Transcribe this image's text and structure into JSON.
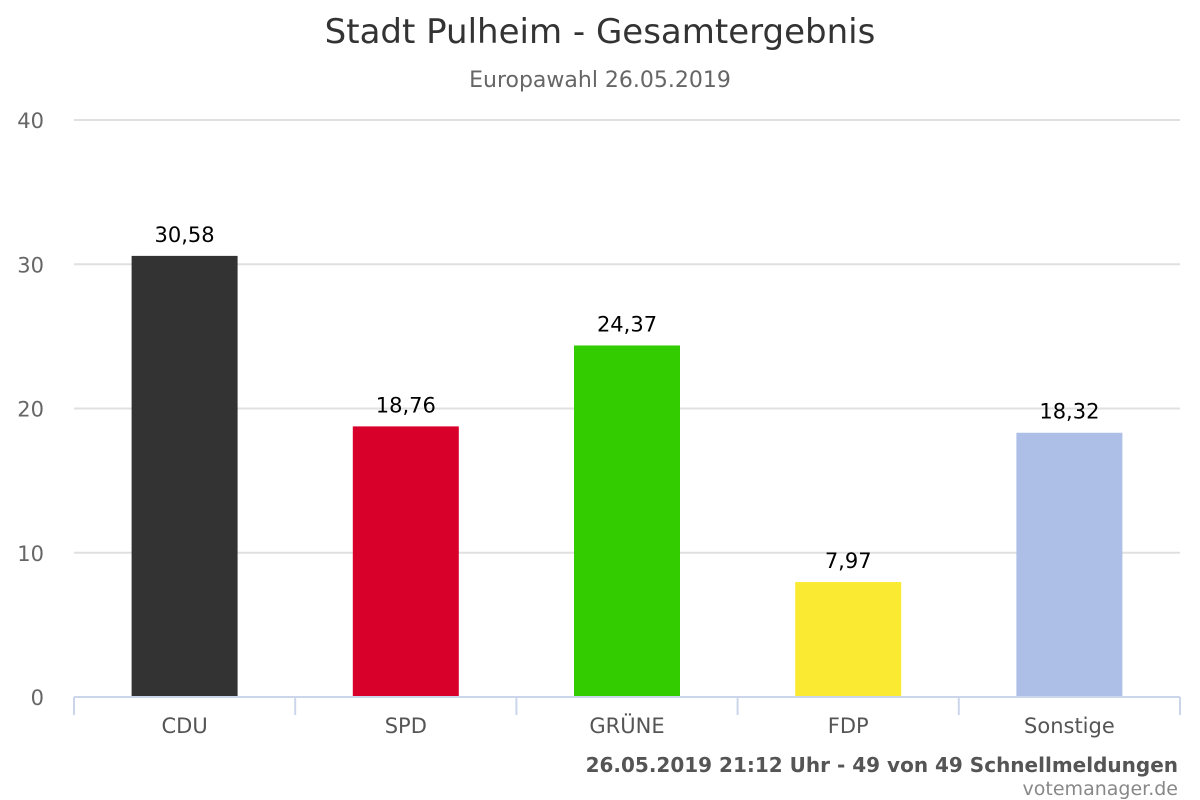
{
  "chart_data": {
    "type": "bar",
    "title": "Stadt Pulheim - Gesamtergebnis",
    "subtitle": "Europawahl 26.05.2019",
    "categories": [
      "CDU",
      "SPD",
      "GRÜNE",
      "FDP",
      "Sonstige"
    ],
    "values": [
      30.58,
      18.76,
      24.37,
      7.97,
      18.32
    ],
    "value_labels": [
      "30,58",
      "18,76",
      "24,37",
      "7,97",
      "18,32"
    ],
    "colors": [
      "#333333",
      "#d8002a",
      "#33cc00",
      "#faeb32",
      "#adbfe6"
    ],
    "ylim": [
      0,
      40
    ],
    "yticks": [
      0,
      10,
      20,
      30,
      40
    ],
    "xlabel": "",
    "ylabel": "",
    "grid": true,
    "legend": "none"
  },
  "footer": {
    "status": "26.05.2019 21:12 Uhr - 49 von 49 Schnellmeldungen",
    "credit": "votemanager.de"
  }
}
